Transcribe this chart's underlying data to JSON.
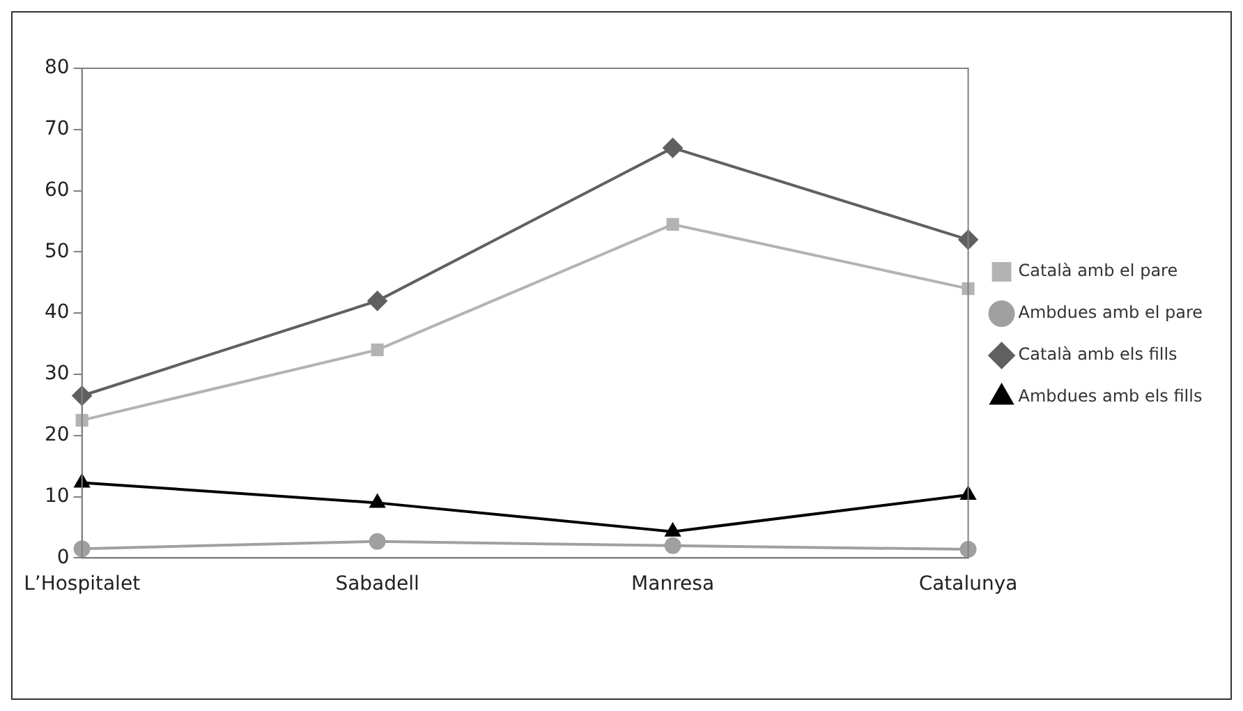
{
  "chart_data": {
    "type": "line",
    "categories": [
      "L’Hospitalet",
      "Sabadell",
      "Manresa",
      "Catalunya"
    ],
    "series": [
      {
        "name": "Català amb el pare",
        "color": "#b3b3b3",
        "marker": "square",
        "values": [
          22.5,
          34,
          54.5,
          44
        ]
      },
      {
        "name": "Ambdues amb el pare",
        "color": "#a0a0a0",
        "marker": "circle",
        "values": [
          1.5,
          2.7,
          2,
          1.4
        ]
      },
      {
        "name": "Català amb els fills",
        "color": "#606060",
        "marker": "diamond",
        "values": [
          26.5,
          42,
          67,
          52
        ]
      },
      {
        "name": "Ambdues amb els fills",
        "color": "#000000",
        "marker": "triangle",
        "values": [
          12.3,
          9,
          4.3,
          10.3
        ]
      }
    ],
    "ylim": [
      0,
      80
    ],
    "yticks": [
      0,
      10,
      20,
      30,
      40,
      50,
      60,
      70,
      80
    ],
    "grid": false,
    "legend": "right",
    "line_style": "solid"
  }
}
